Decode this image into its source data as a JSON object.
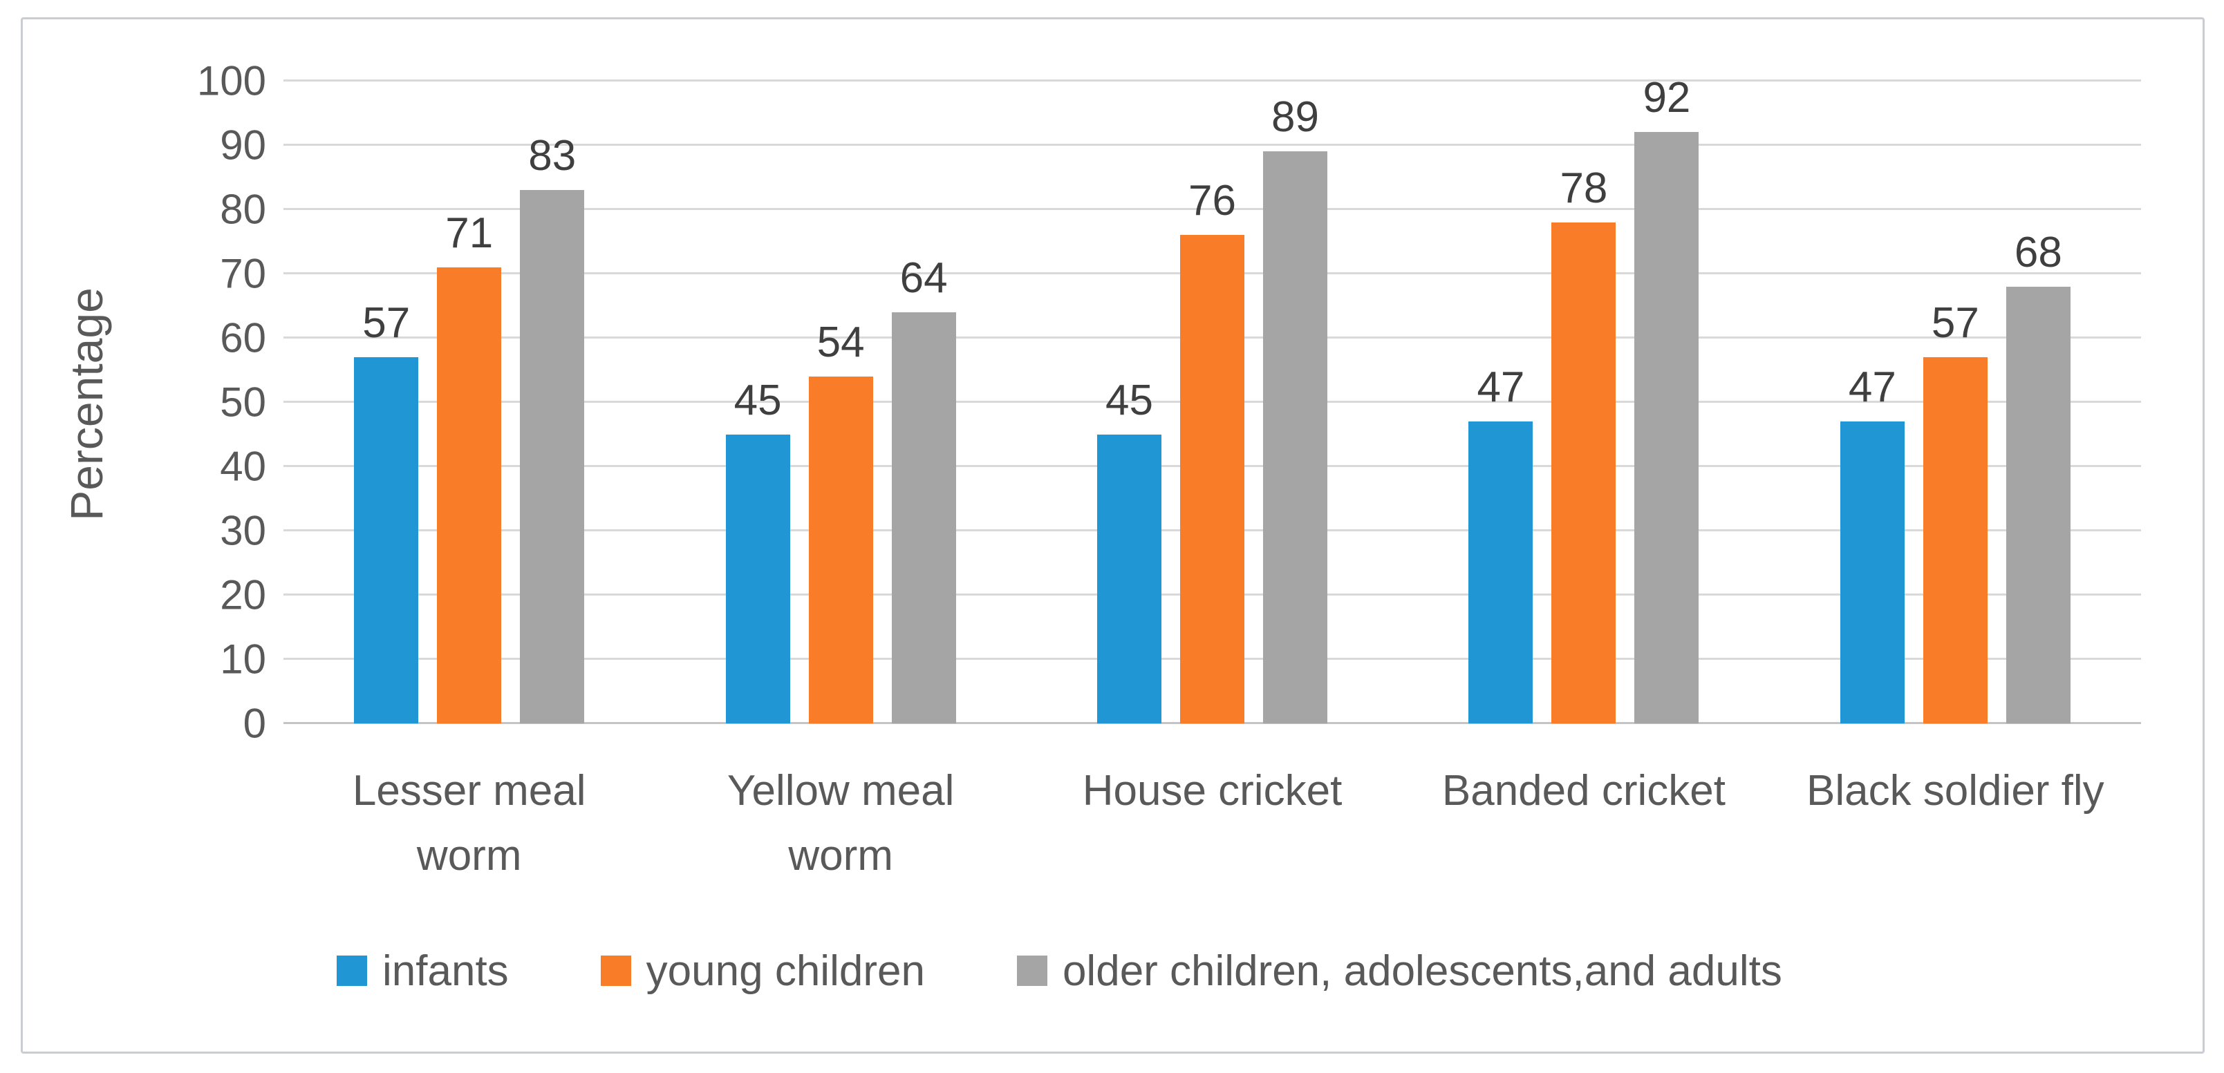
{
  "chart_data": {
    "type": "bar",
    "title": "",
    "ylabel": "Percentage",
    "xlabel": "",
    "ylim": [
      0,
      100
    ],
    "ytick_step": 10,
    "yticks": [
      100,
      90,
      80,
      70,
      60,
      50,
      40,
      30,
      20,
      10,
      0
    ],
    "grid": true,
    "legend_position": "bottom",
    "categories": [
      "Lesser meal\nworm",
      "Yellow meal\nworm",
      "House cricket",
      "Banded cricket",
      "Black soldier fly"
    ],
    "series": [
      {
        "name": "infants",
        "color": "#2196d5",
        "values": [
          57,
          45,
          45,
          47,
          47
        ]
      },
      {
        "name": "young children",
        "color": "#f97d28",
        "values": [
          71,
          54,
          76,
          78,
          57
        ]
      },
      {
        "name": "older children, adolescents,and adults",
        "color": "#a5a5a5",
        "values": [
          83,
          64,
          89,
          92,
          68
        ]
      }
    ]
  },
  "colors": {
    "gridline": "#d9d9d9",
    "axis_line": "#c4c4c4",
    "tick_text": "#595959",
    "data_label_text": "#3f3f3f",
    "frame_border": "#c9cdd1",
    "background": "#ffffff"
  }
}
